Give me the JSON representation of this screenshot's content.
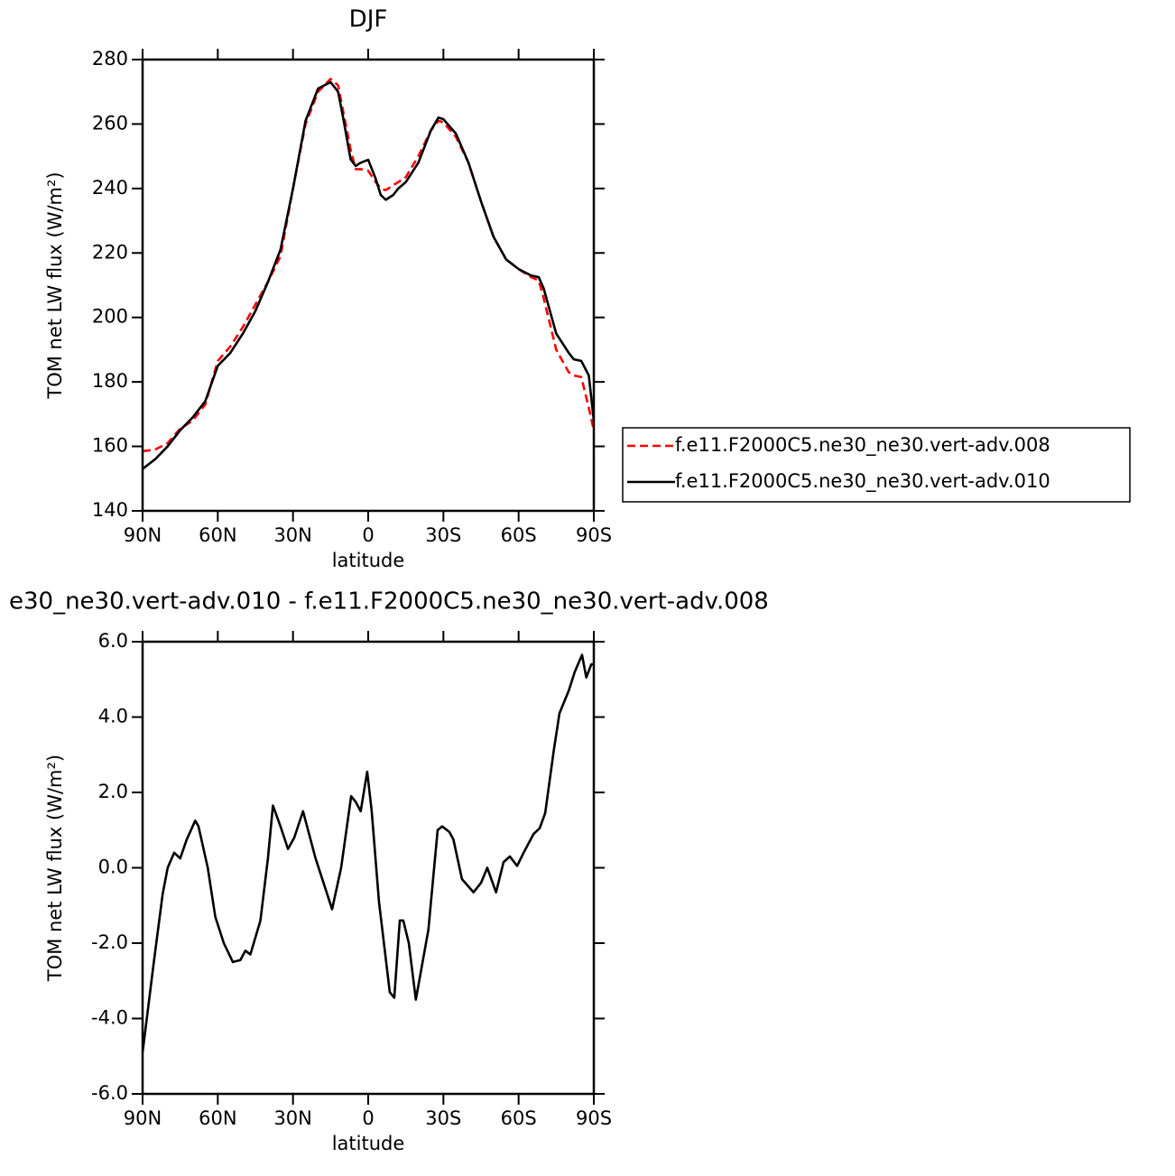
{
  "chart_data": [
    {
      "type": "line",
      "title": "DJF",
      "xlabel": "latitude",
      "ylabel": "TOM net LW flux (W/m²)",
      "x": [
        90,
        85,
        80,
        75,
        70,
        65,
        60,
        55,
        50,
        45,
        40,
        35,
        30,
        25,
        20,
        15,
        12,
        10,
        7,
        5,
        3,
        0,
        -3,
        -5,
        -7,
        -10,
        -12,
        -15,
        -20,
        -25,
        -28,
        -30,
        -35,
        -40,
        -45,
        -50,
        -55,
        -60,
        -65,
        -68,
        -70,
        -75,
        -80,
        -82,
        -85,
        -88,
        -90
      ],
      "series": [
        {
          "name": "f.e11.F2000C5.ne30_ne30.vert-adv.008",
          "color": "#ff0000",
          "dash": true,
          "values": [
            158.5,
            159,
            161,
            165.5,
            168,
            173,
            186.5,
            191,
            197,
            204,
            211,
            219,
            240,
            260,
            270,
            274,
            272,
            264,
            252,
            246,
            246,
            245.5,
            242,
            240,
            239.5,
            241,
            242,
            243.5,
            250,
            258,
            261,
            260.5,
            256,
            248,
            236,
            225,
            218,
            215,
            212.5,
            211.5,
            206,
            190,
            183,
            182,
            181.5,
            172,
            165
          ]
        },
        {
          "name": "f.e11.F2000C5.ne30_ne30.vert-adv.010",
          "color": "#000000",
          "dash": false,
          "values": [
            153,
            156,
            160,
            165,
            169,
            174,
            185,
            189,
            195,
            202,
            211,
            221,
            240,
            261,
            271,
            273,
            270,
            262,
            249,
            247,
            248,
            248.9,
            243,
            238,
            236.5,
            238,
            240,
            242,
            248,
            258,
            262,
            261.5,
            257,
            248,
            236,
            225,
            218,
            215,
            213,
            212.5,
            209,
            195,
            189,
            187,
            186.5,
            182,
            168
          ]
        }
      ],
      "xlim": [
        90,
        -90
      ],
      "xticks": [
        {
          "value": 90,
          "label": "90N"
        },
        {
          "value": 60,
          "label": "60N"
        },
        {
          "value": 30,
          "label": "30N"
        },
        0,
        {
          "value": -30,
          "label": "30S"
        },
        {
          "value": -60,
          "label": "60S"
        },
        {
          "value": -90,
          "label": "90S"
        }
      ],
      "ylim": [
        140,
        280
      ],
      "yticks": [
        140,
        160,
        180,
        200,
        220,
        240,
        260,
        280
      ],
      "legend": "right"
    },
    {
      "type": "line",
      "title": "e30_ne30.vert-adv.010 - f.e11.F2000C5.ne30_ne30.vert-adv.008",
      "xlabel": "latitude",
      "ylabel": "TOM net LW flux (W/m²)",
      "x": [
        90,
        85.7,
        82,
        80,
        77.4,
        75,
        72.4,
        69,
        67.7,
        64,
        61,
        57.6,
        54,
        51,
        49,
        47,
        43,
        40,
        38,
        35,
        32,
        29.5,
        26,
        21,
        14.4,
        10.8,
        6.8,
        5,
        3,
        0.4,
        -1.4,
        -4.3,
        -8.6,
        -10.4,
        -12.6,
        -14,
        -16.2,
        -19,
        -24,
        -27.7,
        -29.5,
        -32.4,
        -34,
        -37.4,
        -42,
        -45,
        -47.5,
        -51,
        -54,
        -56.5,
        -59.4,
        -62,
        -66,
        -68.4,
        -70.6,
        -74,
        -76.3,
        -80,
        -82.4,
        -85.3,
        -87,
        -89,
        -90
      ],
      "series": [
        {
          "color": "#000000",
          "dash": false,
          "values": [
            -4.9,
            -2.6,
            -0.7,
            0,
            0.4,
            0.25,
            0.75,
            1.25,
            1.1,
            0,
            -1.3,
            -2.0,
            -2.5,
            -2.45,
            -2.2,
            -2.3,
            -1.4,
            0.25,
            1.65,
            1.1,
            0.5,
            0.8,
            1.5,
            0.25,
            -1.1,
            0,
            1.9,
            1.75,
            1.5,
            2.55,
            1.5,
            -0.9,
            -3.3,
            -3.45,
            -1.4,
            -1.4,
            -2.0,
            -3.5,
            -1.65,
            1.0,
            1.1,
            0.95,
            0.75,
            -0.3,
            -0.65,
            -0.4,
            0,
            -0.65,
            0.15,
            0.3,
            0.05,
            0.4,
            0.9,
            1.05,
            1.45,
            3.1,
            4.1,
            4.7,
            5.2,
            5.65,
            5.05,
            5.4,
            5.4
          ]
        }
      ],
      "xlim": [
        90,
        -90
      ],
      "xticks": [
        {
          "value": 90,
          "label": "90N"
        },
        {
          "value": 60,
          "label": "60N"
        },
        {
          "value": 30,
          "label": "30N"
        },
        0,
        {
          "value": -30,
          "label": "30S"
        },
        {
          "value": -60,
          "label": "60S"
        },
        {
          "value": -90,
          "label": "90S"
        }
      ],
      "ylim": [
        -6,
        6
      ],
      "yticks": [
        {
          "value": -6,
          "label": "-6.0"
        },
        {
          "value": -4,
          "label": "-4.0"
        },
        {
          "value": -2,
          "label": "-2.0"
        },
        {
          "value": 0,
          "label": "0.0"
        },
        {
          "value": 2,
          "label": "2.0"
        },
        {
          "value": 4,
          "label": "4.0"
        },
        {
          "value": 6,
          "label": "6.0"
        }
      ]
    }
  ]
}
